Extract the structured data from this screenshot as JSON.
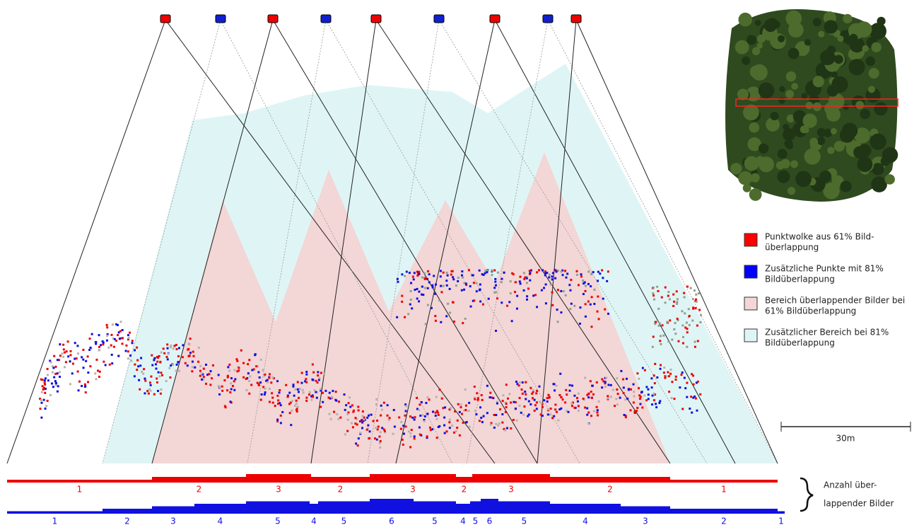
{
  "legend": [
    {
      "lines": [
        "Punktwolke aus 61% Bild-",
        "überlappung"
      ],
      "color": "#ff0000"
    },
    {
      "lines": [
        "Zusätzliche Punkte mit 81%",
        "Bildüberlappung"
      ],
      "color": "#0000ff"
    },
    {
      "lines": [
        "Bereich überlappender Bilder bei",
        "61% Bildüberlappung"
      ],
      "color": "#f3d6d6"
    },
    {
      "lines": [
        "Zusätzlicher Bereich bei 81%",
        "Bildüberlappung"
      ],
      "color": "#dff5f5"
    }
  ],
  "scale_label": "30m",
  "overlap_label": [
    "Anzahl über-",
    "lappender Bilder"
  ],
  "red_counts": [
    1,
    2,
    3,
    2,
    3,
    2,
    3,
    2,
    1
  ],
  "blue_counts": [
    1,
    2,
    3,
    4,
    5,
    4,
    5,
    6,
    5,
    4,
    5,
    6,
    5,
    4,
    3,
    2,
    1
  ]
}
